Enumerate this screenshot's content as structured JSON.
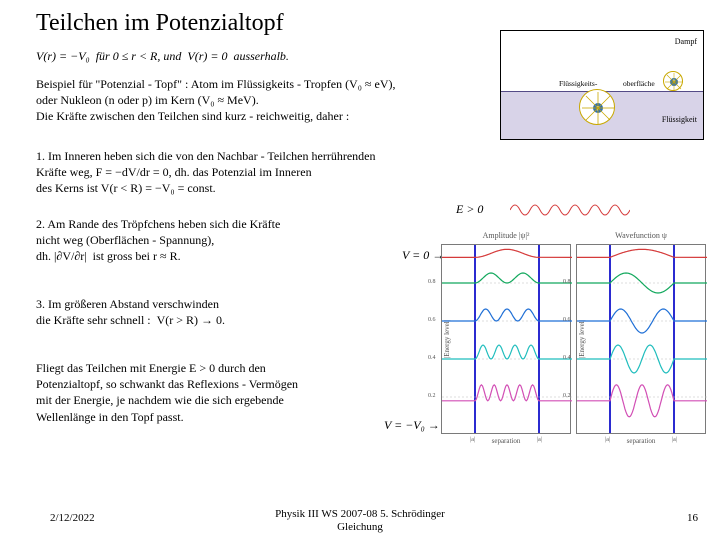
{
  "title": "Teilchen im Potenzialtopf",
  "line1": "V(r) = −V₀  für 0 ≤ r < R, und  V(r) = 0  ausserhalb.",
  "para1": "Beispiel für \"Potenzial - Topf\" : Atom im Flüssigkeits - Tropfen (V₀ ≈ eV),\noder Nukleon (n oder p) im Kern (V₀ ≈ MeV).\nDie Kräfte zwischen den Teilchen sind kurz - reichweitig, daher :",
  "para2": "1. Im Inneren heben sich die von den Nachbar - Teilchen herrührenden\nKräfte weg, F = −dV/dr = 0, dh. das Potenzial im Inneren\ndes Kerns ist V(r < R) = −V₀ = const.",
  "para3": "2. Am Rande des Tröpfchens heben sich die Kräfte\nnicht weg (Oberflächen - Spannung),\ndh. |∂V/∂r|  ist gross bei r ≈ R.",
  "para4": "3. Im größeren Abstand verschwinden\ndie Kräfte sehr schnell :  V(r > R) → 0.",
  "para5": "Fliegt das Teilchen mit Energie E > 0 durch den\nPotenzialtopf, so schwankt das Reflexions - Vermögen\nmit der Energie, je nachdem wie die sich ergebende\nWellenlänge in den Topf passt.",
  "annot": {
    "e_gt_0": "E > 0",
    "v_zero": "V = 0 →",
    "v_v0": "V = −V₀ →"
  },
  "fig_top": {
    "vapor": "Dampf",
    "fluessig_title": "Flüssigkeits-",
    "oberfl_title": "oberfläche",
    "liquid": "Flüssigkeit",
    "vapor_bg": "#ffffff",
    "liquid_bg": "#d8d3e8",
    "liquid_border": "#544b87",
    "drop_border": "#c9a800",
    "nucleus_fill": "#2e6fb0",
    "nucleus_p": "p",
    "nucleus_n": "n"
  },
  "charts": {
    "panel_border": "#7a7a7a",
    "grid_color": "#bdbdbd",
    "well_line_color": "#2b2bd0",
    "xlim": [
      0,
      2
    ],
    "xticks": [
      "|a|",
      "|a|"
    ],
    "xlabel": "separation",
    "left": {
      "title": "Amplitude |ψ|²",
      "ylabel": "|Energy level|",
      "ylim": [
        0,
        1.0
      ],
      "yticks": [
        0.2,
        0.4,
        0.6,
        0.8
      ],
      "curves": [
        {
          "color": "#d53a3a",
          "y": 0.935
        },
        {
          "color": "#12a85d",
          "y": 0.8
        },
        {
          "color": "#1f6fd6",
          "y": 0.6
        },
        {
          "color": "#1fbdbd",
          "y": 0.4
        },
        {
          "color": "#d24fb5",
          "y": 0.18
        }
      ]
    },
    "right": {
      "title": "Wavefunction ψ",
      "ylabel": "|Energy level|",
      "ylim": [
        0,
        1.0
      ],
      "yticks": [
        0.2,
        0.4,
        0.6,
        0.8
      ],
      "curves": [
        {
          "color": "#d53a3a",
          "y": 0.935
        },
        {
          "color": "#12a85d",
          "y": 0.8
        },
        {
          "color": "#1f6fd6",
          "y": 0.6
        },
        {
          "color": "#1fbdbd",
          "y": 0.4
        },
        {
          "color": "#d24fb5",
          "y": 0.18
        }
      ]
    }
  },
  "osc_color": "#d53a3a",
  "footer": {
    "date": "2/12/2022",
    "center": "Physik III WS 2007-08 5. Schrödinger\nGleichung",
    "page": "16"
  }
}
